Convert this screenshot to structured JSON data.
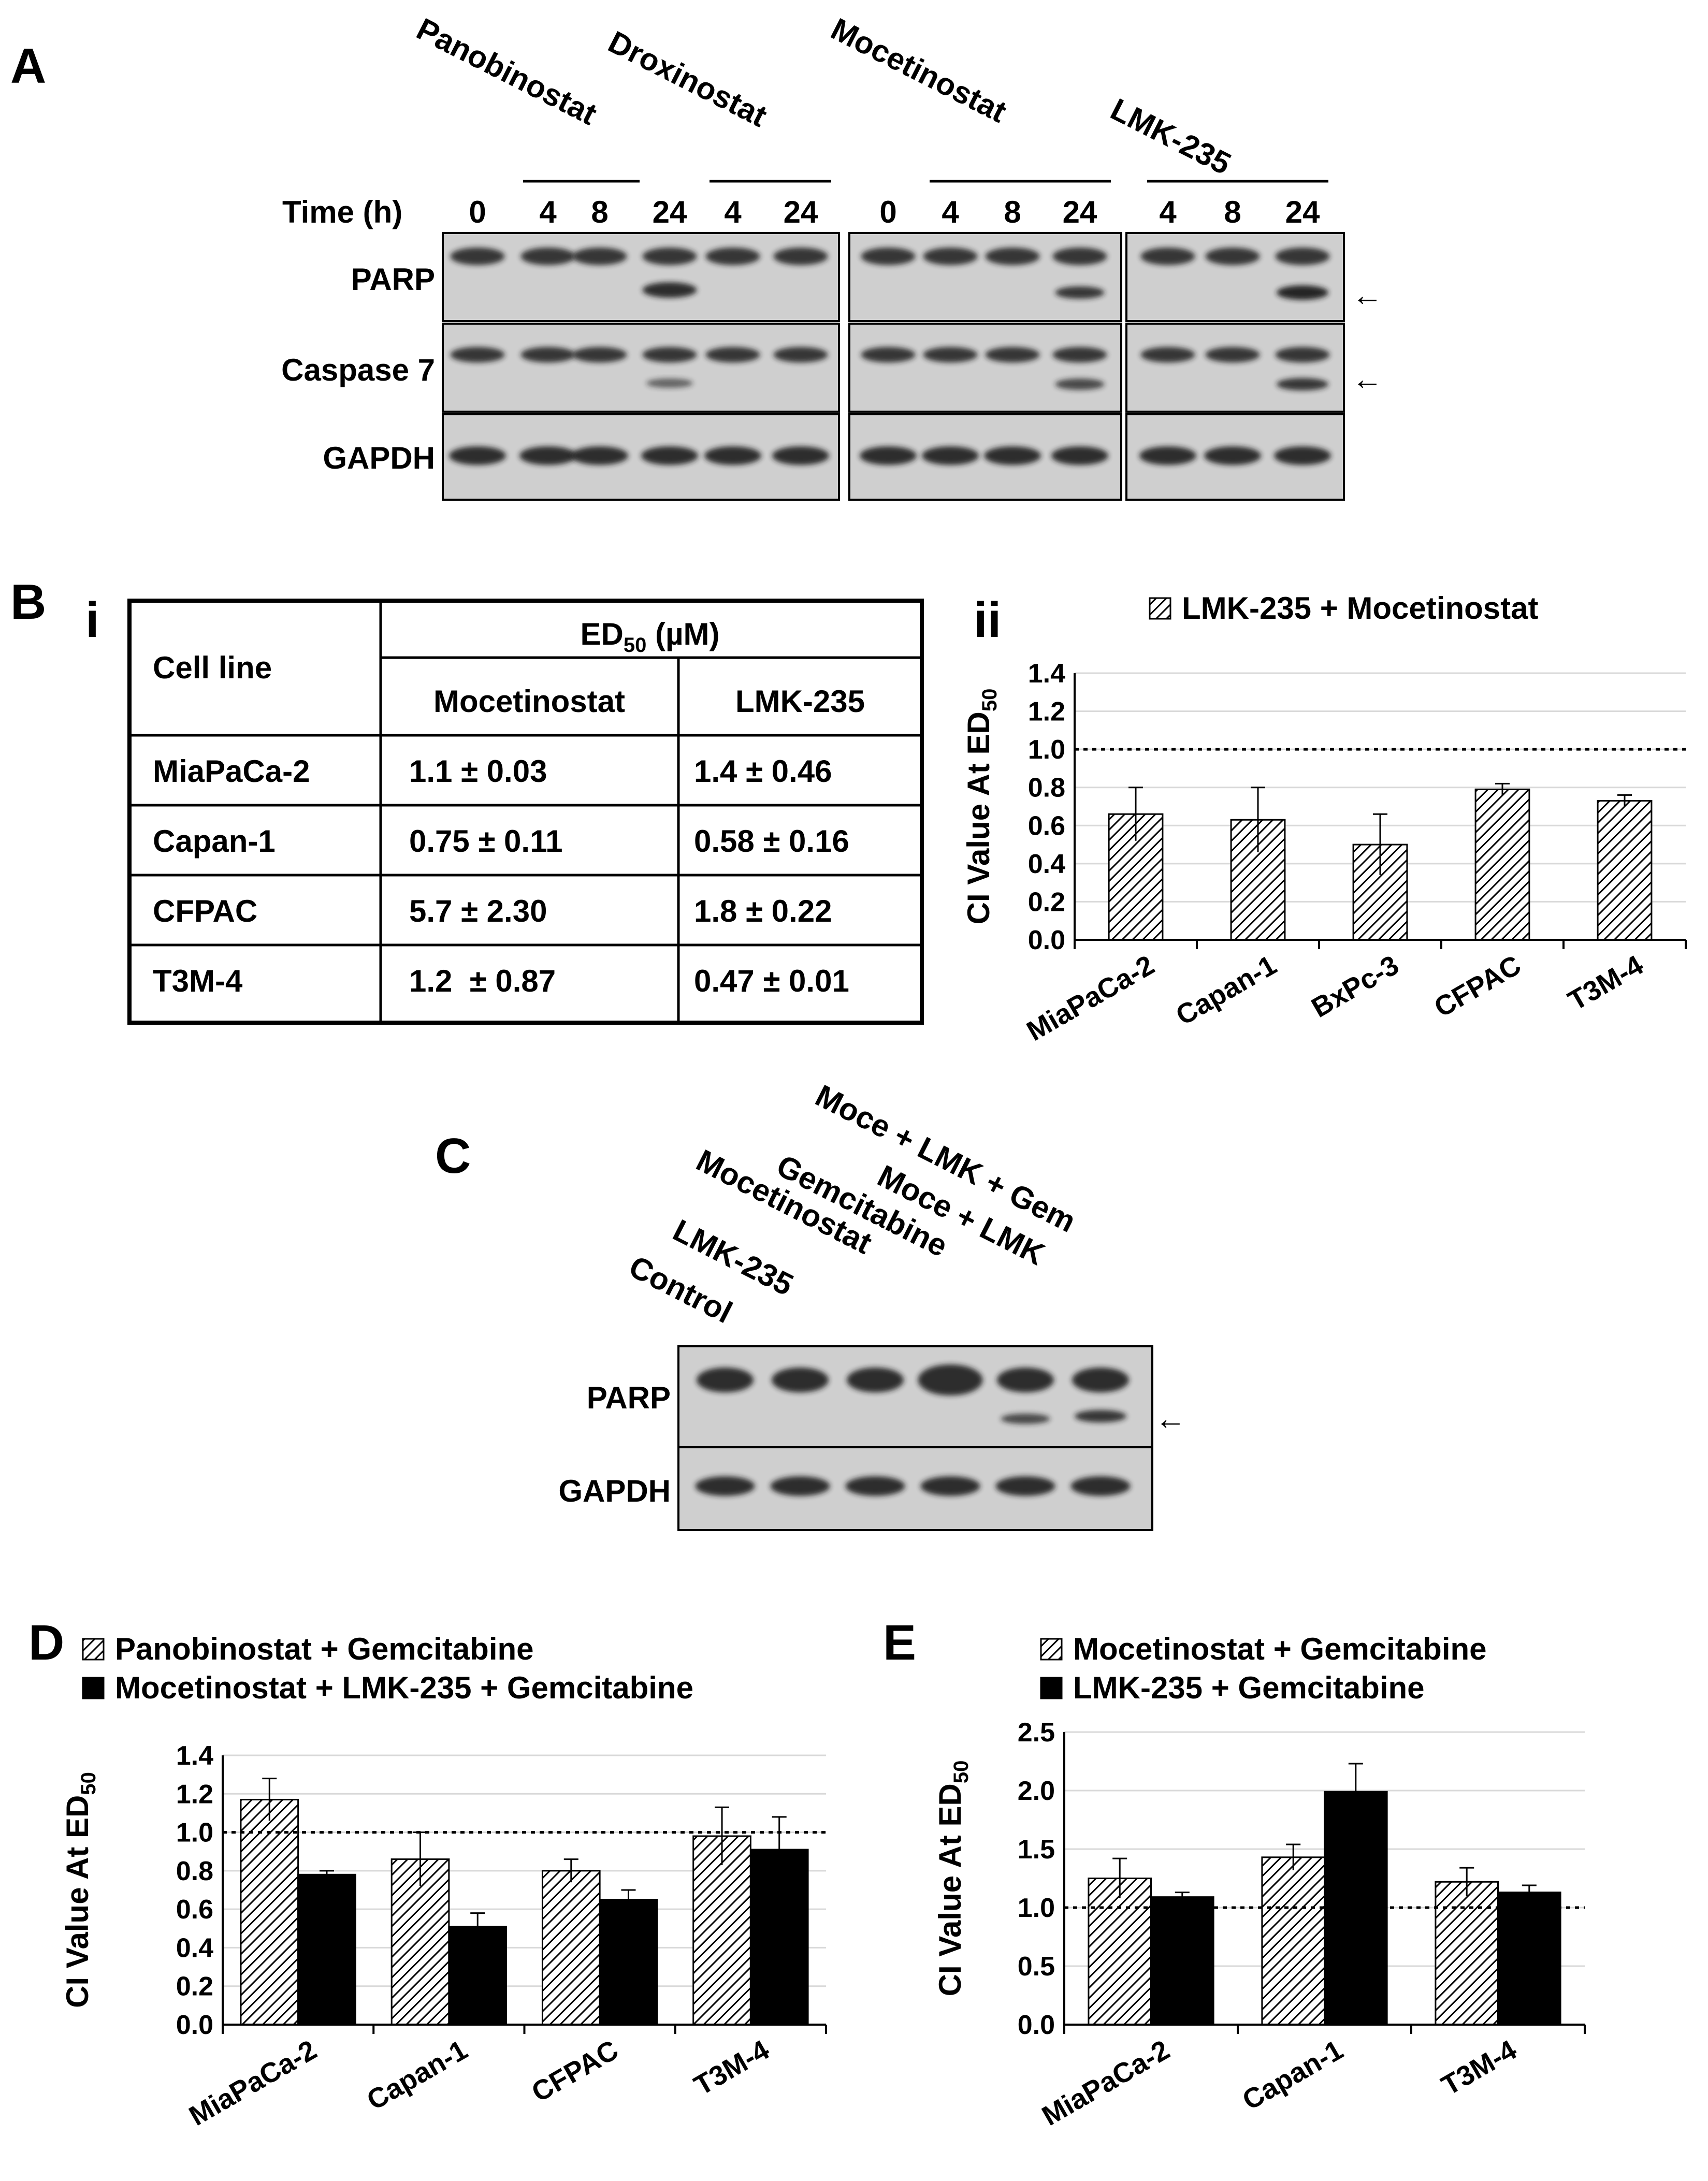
{
  "panel_a": {
    "letter": "A",
    "time_label": "Time (h)",
    "drugs": [
      "Panobinostat",
      "Droxinostat",
      "Mocetinostat",
      "LMK-235"
    ],
    "times": {
      "g1": [
        "0",
        "4",
        "8",
        "24",
        "4",
        "24"
      ],
      "g2": [
        "0",
        "4",
        "8",
        "24"
      ],
      "g3": [
        "4",
        "8",
        "24"
      ]
    },
    "rows": [
      "PARP",
      "Caspase 7",
      "GAPDH"
    ],
    "arrow": "←"
  },
  "panel_b": {
    "letter": "B",
    "sub_i": "i",
    "sub_ii": "ii",
    "table": {
      "col_cell_line": "Cell line",
      "ed50_header": "ED",
      "ed50_sub": "50",
      "ed50_unit": " (µM)",
      "col_drug1": "Mocetinostat",
      "col_drug2": "LMK-235",
      "rows": [
        {
          "cell": "MiaPaCa-2",
          "moce": "1.1 ± 0.03",
          "lmk": "1.4 ± 0.46"
        },
        {
          "cell": "Capan-1",
          "moce": "0.75 ± 0.11",
          "lmk": "0.58 ± 0.16"
        },
        {
          "cell": "CFPAC",
          "moce": "5.7 ± 2.30",
          "lmk": "1.8 ± 0.22"
        },
        {
          "cell": "T3M-4",
          "moce": "1.2  ± 0.87",
          "lmk": "0.47 ± 0.01"
        }
      ]
    }
  },
  "panel_c": {
    "letter": "C",
    "lanes": [
      "Control",
      "LMK-235",
      "Mocetinostat",
      "Gemcitabine",
      "Moce + LMK",
      "Moce + LMK + Gem"
    ],
    "rows": [
      "PARP",
      "GAPDH"
    ],
    "arrow": "←"
  },
  "panel_d": {
    "letter": "D"
  },
  "panel_e": {
    "letter": "E"
  },
  "chart_data": [
    {
      "id": "B-ii",
      "type": "bar",
      "ylabel": "CI Value At ED",
      "ylabel_sub": "50",
      "categories": [
        "MiaPaCa-2",
        "Capan-1",
        "BxPc-3",
        "CFPAC",
        "T3M-4"
      ],
      "series": [
        {
          "name": "LMK-235 + Mocetinostat",
          "pattern": "hatched",
          "values": [
            0.66,
            0.63,
            0.5,
            0.79,
            0.73
          ],
          "errors": [
            0.14,
            0.17,
            0.16,
            0.03,
            0.03
          ]
        }
      ],
      "ylim": [
        0,
        1.4
      ],
      "yticks": [
        "0.0",
        "0.2",
        "0.4",
        "0.6",
        "0.8",
        "1.0",
        "1.2",
        "1.4"
      ],
      "reference_line": 1.0,
      "grid": true,
      "legend": "top"
    },
    {
      "id": "D",
      "type": "bar",
      "ylabel": "CI Value At ED",
      "ylabel_sub": "50",
      "categories": [
        "MiaPaCa-2",
        "Capan-1",
        "CFPAC",
        "T3M-4"
      ],
      "series": [
        {
          "name": "Panobinostat + Gemcitabine",
          "pattern": "hatched",
          "values": [
            1.17,
            0.86,
            0.8,
            0.98
          ],
          "errors": [
            0.11,
            0.14,
            0.06,
            0.15
          ]
        },
        {
          "name": "Mocetinostat + LMK-235 + Gemcitabine",
          "pattern": "solid",
          "values": [
            0.78,
            0.51,
            0.65,
            0.91
          ],
          "errors": [
            0.02,
            0.07,
            0.05,
            0.17
          ]
        }
      ],
      "ylim": [
        0,
        1.4
      ],
      "yticks": [
        "0.0",
        "0.2",
        "0.4",
        "0.6",
        "0.8",
        "1.0",
        "1.2",
        "1.4"
      ],
      "reference_line": 1.0,
      "grid": true,
      "legend": "top"
    },
    {
      "id": "E",
      "type": "bar",
      "ylabel": "CI Value At ED",
      "ylabel_sub": "50",
      "categories": [
        "MiaPaCa-2",
        "Capan-1",
        "T3M-4"
      ],
      "series": [
        {
          "name": "Mocetinostat + Gemcitabine",
          "pattern": "hatched",
          "values": [
            1.25,
            1.43,
            1.22
          ],
          "errors": [
            0.17,
            0.11,
            0.12
          ]
        },
        {
          "name": "LMK-235 + Gemcitabine",
          "pattern": "solid",
          "values": [
            1.09,
            1.99,
            1.13
          ],
          "errors": [
            0.04,
            0.24,
            0.06
          ]
        }
      ],
      "ylim": [
        0,
        2.5
      ],
      "yticks": [
        "0.0",
        "0.5",
        "1.0",
        "1.5",
        "2.0",
        "2.5"
      ],
      "reference_line": 1.0,
      "grid": true,
      "legend": "top"
    }
  ],
  "colors": {
    "ink": "#000000",
    "grid": "#d9d9d9",
    "blot_bg": "#cfcfcf",
    "band": "#1a1a1a"
  }
}
